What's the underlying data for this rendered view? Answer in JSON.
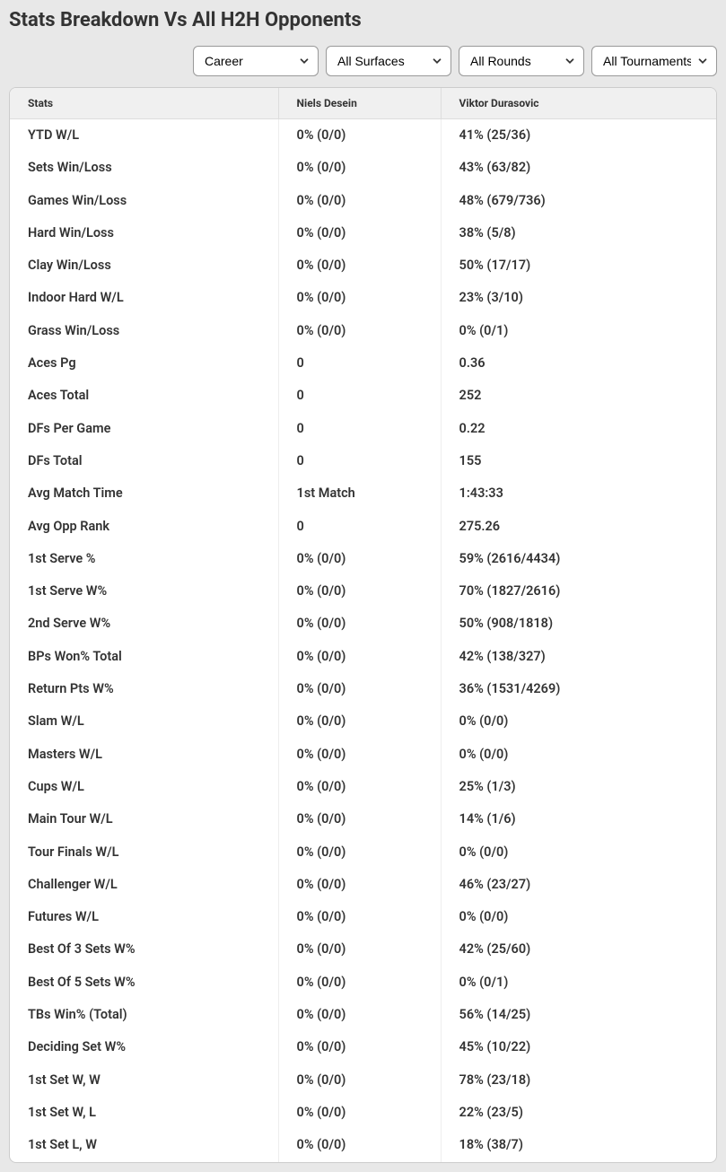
{
  "title": "Stats Breakdown Vs All H2H Opponents",
  "filters": {
    "career": "Career",
    "surfaces": "All Surfaces",
    "rounds": "All Rounds",
    "tournaments": "All Tournaments"
  },
  "table": {
    "headers": {
      "stats": "Stats",
      "player1": "Niels Desein",
      "player2": "Viktor Durasovic"
    },
    "rows": [
      {
        "stat": "YTD W/L",
        "p1": "0% (0/0)",
        "p2": "41% (25/36)"
      },
      {
        "stat": "Sets Win/Loss",
        "p1": "0% (0/0)",
        "p2": "43% (63/82)"
      },
      {
        "stat": "Games Win/Loss",
        "p1": "0% (0/0)",
        "p2": "48% (679/736)"
      },
      {
        "stat": "Hard Win/Loss",
        "p1": "0% (0/0)",
        "p2": "38% (5/8)"
      },
      {
        "stat": "Clay Win/Loss",
        "p1": "0% (0/0)",
        "p2": "50% (17/17)"
      },
      {
        "stat": "Indoor Hard W/L",
        "p1": "0% (0/0)",
        "p2": "23% (3/10)"
      },
      {
        "stat": "Grass Win/Loss",
        "p1": "0% (0/0)",
        "p2": "0% (0/1)"
      },
      {
        "stat": "Aces Pg",
        "p1": "0",
        "p2": "0.36"
      },
      {
        "stat": "Aces Total",
        "p1": "0",
        "p2": "252"
      },
      {
        "stat": "DFs Per Game",
        "p1": "0",
        "p2": "0.22"
      },
      {
        "stat": "DFs Total",
        "p1": "0",
        "p2": "155"
      },
      {
        "stat": "Avg Match Time",
        "p1": "1st Match",
        "p2": "1:43:33"
      },
      {
        "stat": "Avg Opp Rank",
        "p1": "0",
        "p2": "275.26"
      },
      {
        "stat": "1st Serve %",
        "p1": "0% (0/0)",
        "p2": "59% (2616/4434)"
      },
      {
        "stat": "1st Serve W%",
        "p1": "0% (0/0)",
        "p2": "70% (1827/2616)"
      },
      {
        "stat": "2nd Serve W%",
        "p1": "0% (0/0)",
        "p2": "50% (908/1818)"
      },
      {
        "stat": "BPs Won% Total",
        "p1": "0% (0/0)",
        "p2": "42% (138/327)"
      },
      {
        "stat": "Return Pts W%",
        "p1": "0% (0/0)",
        "p2": "36% (1531/4269)"
      },
      {
        "stat": "Slam W/L",
        "p1": "0% (0/0)",
        "p2": "0% (0/0)"
      },
      {
        "stat": "Masters W/L",
        "p1": "0% (0/0)",
        "p2": "0% (0/0)"
      },
      {
        "stat": "Cups W/L",
        "p1": "0% (0/0)",
        "p2": "25% (1/3)"
      },
      {
        "stat": "Main Tour W/L",
        "p1": "0% (0/0)",
        "p2": "14% (1/6)"
      },
      {
        "stat": "Tour Finals W/L",
        "p1": "0% (0/0)",
        "p2": "0% (0/0)"
      },
      {
        "stat": "Challenger W/L",
        "p1": "0% (0/0)",
        "p2": "46% (23/27)"
      },
      {
        "stat": "Futures W/L",
        "p1": "0% (0/0)",
        "p2": "0% (0/0)"
      },
      {
        "stat": "Best Of 3 Sets W%",
        "p1": "0% (0/0)",
        "p2": "42% (25/60)"
      },
      {
        "stat": "Best Of 5 Sets W%",
        "p1": "0% (0/0)",
        "p2": "0% (0/1)"
      },
      {
        "stat": "TBs Win% (Total)",
        "p1": "0% (0/0)",
        "p2": "56% (14/25)"
      },
      {
        "stat": "Deciding Set W%",
        "p1": "0% (0/0)",
        "p2": "45% (10/22)"
      },
      {
        "stat": "1st Set W, W",
        "p1": "0% (0/0)",
        "p2": "78% (23/18)"
      },
      {
        "stat": "1st Set W, L",
        "p1": "0% (0/0)",
        "p2": "22% (23/5)"
      },
      {
        "stat": "1st Set L, W",
        "p1": "0% (0/0)",
        "p2": "18% (38/7)"
      }
    ]
  }
}
